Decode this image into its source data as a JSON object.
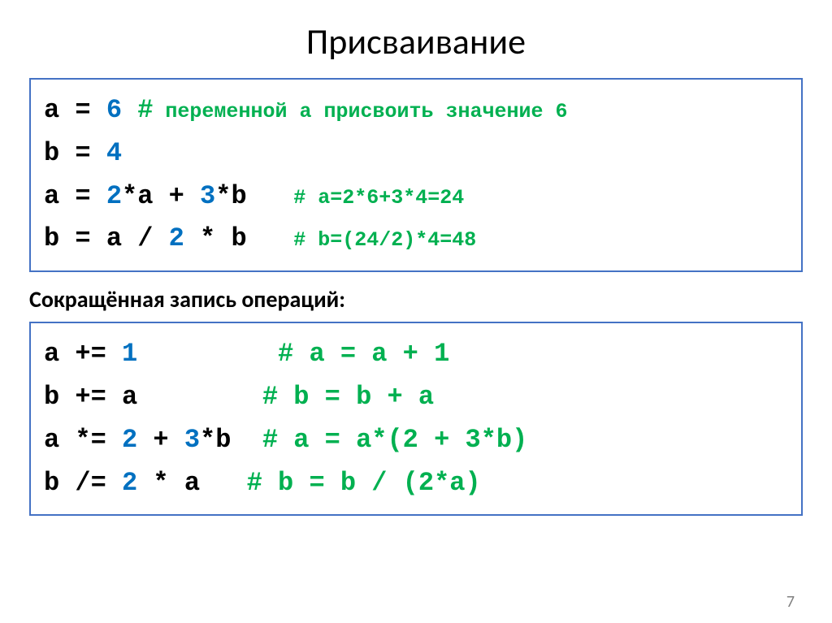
{
  "title": "Присваивание",
  "subtitle": "Сокращённая запись операций:",
  "pageNumber": "7",
  "box1": {
    "l1_code": "a = ",
    "l1_num": "6",
    "l1_sp": " ",
    "l1_hash": "#",
    "l1_comment": " переменной a присвоить значение 6",
    "l2_code": "b = ",
    "l2_num": "4",
    "l3_code": "a = ",
    "l3_num1": "2",
    "l3_mid1": "*a + ",
    "l3_num2": "3",
    "l3_mid2": "*b   ",
    "l3_comment": "# a=2*6+3*4=24",
    "l4_code": "b = a / ",
    "l4_num": "2",
    "l4_mid": " * b   ",
    "l4_comment": "# b=(24/2)*4=48"
  },
  "box2": {
    "l1_code": "a += ",
    "l1_num": "1",
    "l1_sp": "         ",
    "l1_comment": "# a = a + 1",
    "l2_code": "b += a        ",
    "l2_comment": "# b = b + a",
    "l3_code": "a *= ",
    "l3_num1": "2",
    "l3_mid1": " + ",
    "l3_num2": "3",
    "l3_mid2": "*b  ",
    "l3_comment": "# a = a*(2 + 3*b)",
    "l4_code": "b /= ",
    "l4_num": "2",
    "l4_mid": " * a   ",
    "l4_comment": "# b = b / (2*a)"
  }
}
